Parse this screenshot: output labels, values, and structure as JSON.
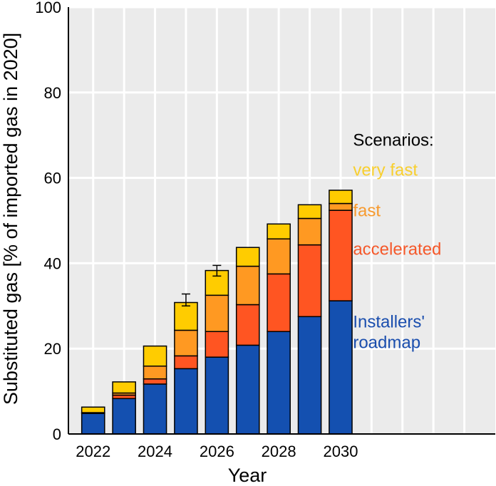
{
  "chart_data": {
    "type": "bar",
    "stacked": true,
    "title": "",
    "xlabel": "Year",
    "ylabel": "Substituted gas [% of imported gas in 2020]",
    "ylim": [
      0,
      100
    ],
    "xlim": [
      2021.2,
      2035
    ],
    "y_ticks": [
      0,
      20,
      40,
      60,
      80,
      100
    ],
    "x_ticks": [
      2022,
      2024,
      2026,
      2028,
      2030
    ],
    "grid": true,
    "categories": [
      2022,
      2023,
      2024,
      2025,
      2026,
      2027,
      2028,
      2029,
      2030
    ],
    "series": [
      {
        "name": "Installers' roadmap",
        "color": "#1450b0",
        "values": [
          4.8,
          8.3,
          11.7,
          15.3,
          18.0,
          20.8,
          24.0,
          27.5,
          31.2
        ]
      },
      {
        "name": "accelerated",
        "color": "#ff5522",
        "values": [
          0.1,
          0.8,
          1.2,
          3.0,
          6.0,
          9.5,
          13.5,
          16.8,
          21.2
        ]
      },
      {
        "name": "fast",
        "color": "#ff9922",
        "values": [
          0.1,
          0.5,
          3.0,
          6.0,
          8.5,
          9.0,
          8.2,
          6.2,
          1.6
        ]
      },
      {
        "name": "very fast",
        "color": "#ffcc00",
        "values": [
          1.3,
          2.6,
          4.7,
          6.5,
          5.8,
          4.4,
          3.5,
          3.2,
          3.1
        ]
      }
    ],
    "error_bars": [
      {
        "category": 2025,
        "low": 30.0,
        "high": 32.8
      },
      {
        "category": 2026,
        "low": 37.0,
        "high": 39.5
      }
    ],
    "legend": {
      "title": "Scenarios:",
      "placement": "right",
      "entries": [
        {
          "label": "very fast",
          "color": "#f8cf2e",
          "value": 62
        },
        {
          "label": "fast",
          "color": "#f79a2e",
          "value": 52.5
        },
        {
          "label": "accelerated",
          "color": "#f5582a",
          "value": 43.5
        },
        {
          "label": "Installers'\nroadmap",
          "color": "#1a4eae",
          "value": 26.5
        }
      ],
      "title_value": 69
    }
  }
}
